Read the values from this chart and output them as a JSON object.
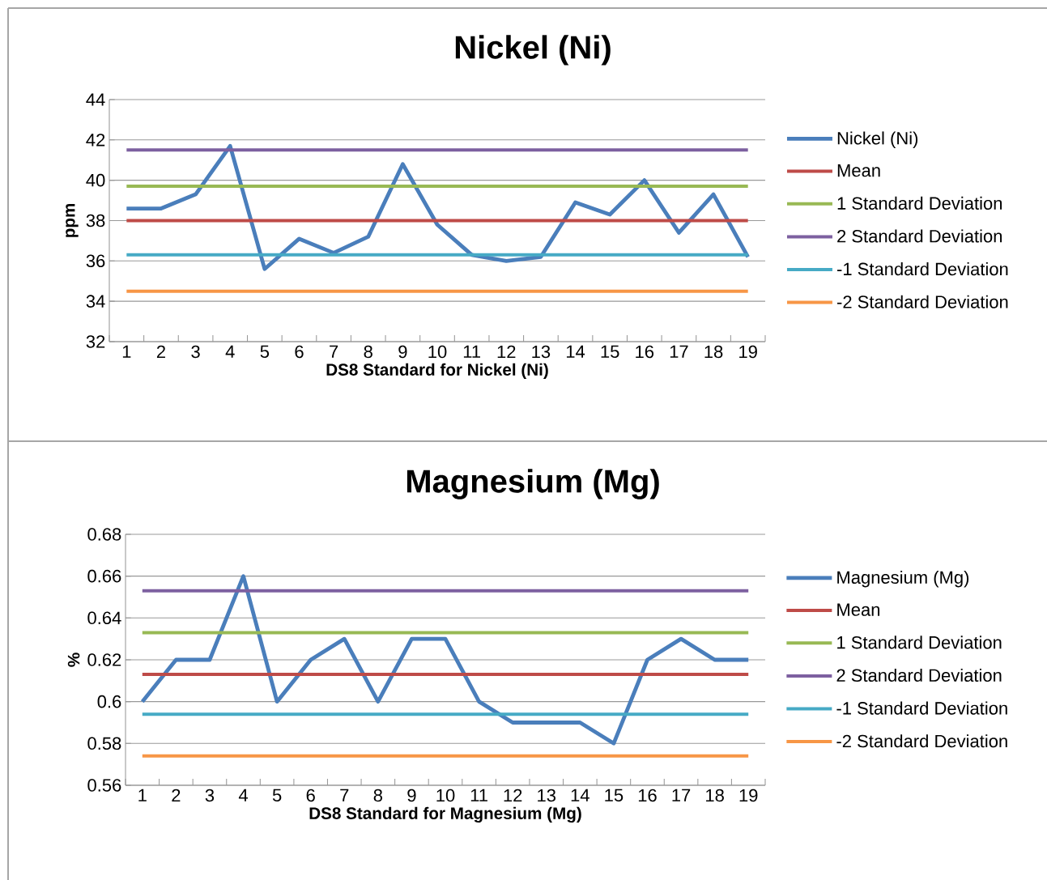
{
  "chart_data": [
    {
      "type": "line",
      "title": "Nickel (Ni)",
      "xlabel": "DS8 Standard for Nickel (Ni)",
      "ylabel": "ppm",
      "categories": [
        "1",
        "2",
        "3",
        "4",
        "5",
        "6",
        "7",
        "8",
        "9",
        "10",
        "11",
        "12",
        "13",
        "14",
        "15",
        "16",
        "17",
        "18",
        "19"
      ],
      "ylim": [
        32,
        44
      ],
      "yticks": [
        32,
        34,
        36,
        38,
        40,
        42,
        44
      ],
      "grid": "y",
      "legend": "right",
      "marker": "none",
      "line_style": "solid",
      "series": [
        {
          "name": "Nickel (Ni)",
          "color": "#4a7ebb",
          "values": [
            38.6,
            38.6,
            39.3,
            41.7,
            35.6,
            37.1,
            36.4,
            37.2,
            40.8,
            37.8,
            36.3,
            36.0,
            36.2,
            38.9,
            38.3,
            40.0,
            37.4,
            39.3,
            36.2
          ]
        },
        {
          "name": "Mean",
          "color": "#be4b48",
          "values": [
            38.0,
            38.0,
            38.0,
            38.0,
            38.0,
            38.0,
            38.0,
            38.0,
            38.0,
            38.0,
            38.0,
            38.0,
            38.0,
            38.0,
            38.0,
            38.0,
            38.0,
            38.0,
            38.0
          ]
        },
        {
          "name": "1 Standard Deviation",
          "color": "#98b954",
          "values": [
            39.7,
            39.7,
            39.7,
            39.7,
            39.7,
            39.7,
            39.7,
            39.7,
            39.7,
            39.7,
            39.7,
            39.7,
            39.7,
            39.7,
            39.7,
            39.7,
            39.7,
            39.7,
            39.7
          ]
        },
        {
          "name": "2 Standard Deviation",
          "color": "#7d60a0",
          "values": [
            41.5,
            41.5,
            41.5,
            41.5,
            41.5,
            41.5,
            41.5,
            41.5,
            41.5,
            41.5,
            41.5,
            41.5,
            41.5,
            41.5,
            41.5,
            41.5,
            41.5,
            41.5,
            41.5
          ]
        },
        {
          "name": "-1 Standard Deviation",
          "color": "#46aac5",
          "values": [
            36.3,
            36.3,
            36.3,
            36.3,
            36.3,
            36.3,
            36.3,
            36.3,
            36.3,
            36.3,
            36.3,
            36.3,
            36.3,
            36.3,
            36.3,
            36.3,
            36.3,
            36.3,
            36.3
          ]
        },
        {
          "name": "-2 Standard Deviation",
          "color": "#f79646",
          "values": [
            34.5,
            34.5,
            34.5,
            34.5,
            34.5,
            34.5,
            34.5,
            34.5,
            34.5,
            34.5,
            34.5,
            34.5,
            34.5,
            34.5,
            34.5,
            34.5,
            34.5,
            34.5,
            34.5
          ]
        }
      ]
    },
    {
      "type": "line",
      "title": "Magnesium (Mg)",
      "xlabel": "DS8 Standard for Magnesium (Mg)",
      "ylabel": "%",
      "categories": [
        "1",
        "2",
        "3",
        "4",
        "5",
        "6",
        "7",
        "8",
        "9",
        "10",
        "11",
        "12",
        "13",
        "14",
        "15",
        "16",
        "17",
        "18",
        "19"
      ],
      "ylim": [
        0.56,
        0.68
      ],
      "yticks": [
        0.56,
        0.58,
        0.6,
        0.62,
        0.64,
        0.66,
        0.68
      ],
      "grid": "y",
      "legend": "right",
      "marker": "none",
      "line_style": "solid",
      "series": [
        {
          "name": "Magnesium (Mg)",
          "color": "#4a7ebb",
          "values": [
            0.6,
            0.62,
            0.62,
            0.66,
            0.6,
            0.62,
            0.63,
            0.6,
            0.63,
            0.63,
            0.6,
            0.59,
            0.59,
            0.59,
            0.58,
            0.62,
            0.63,
            0.62,
            0.62
          ]
        },
        {
          "name": "Mean",
          "color": "#be4b48",
          "values": [
            0.613,
            0.613,
            0.613,
            0.613,
            0.613,
            0.613,
            0.613,
            0.613,
            0.613,
            0.613,
            0.613,
            0.613,
            0.613,
            0.613,
            0.613,
            0.613,
            0.613,
            0.613,
            0.613
          ]
        },
        {
          "name": "1 Standard Deviation",
          "color": "#98b954",
          "values": [
            0.633,
            0.633,
            0.633,
            0.633,
            0.633,
            0.633,
            0.633,
            0.633,
            0.633,
            0.633,
            0.633,
            0.633,
            0.633,
            0.633,
            0.633,
            0.633,
            0.633,
            0.633,
            0.633
          ]
        },
        {
          "name": "2 Standard Deviation",
          "color": "#7d60a0",
          "values": [
            0.653,
            0.653,
            0.653,
            0.653,
            0.653,
            0.653,
            0.653,
            0.653,
            0.653,
            0.653,
            0.653,
            0.653,
            0.653,
            0.653,
            0.653,
            0.653,
            0.653,
            0.653,
            0.653
          ]
        },
        {
          "name": "-1 Standard Deviation",
          "color": "#46aac5",
          "values": [
            0.594,
            0.594,
            0.594,
            0.594,
            0.594,
            0.594,
            0.594,
            0.594,
            0.594,
            0.594,
            0.594,
            0.594,
            0.594,
            0.594,
            0.594,
            0.594,
            0.594,
            0.594,
            0.594
          ]
        },
        {
          "name": "-2 Standard Deviation",
          "color": "#f79646",
          "values": [
            0.574,
            0.574,
            0.574,
            0.574,
            0.574,
            0.574,
            0.574,
            0.574,
            0.574,
            0.574,
            0.574,
            0.574,
            0.574,
            0.574,
            0.574,
            0.574,
            0.574,
            0.574,
            0.574
          ]
        }
      ]
    }
  ]
}
